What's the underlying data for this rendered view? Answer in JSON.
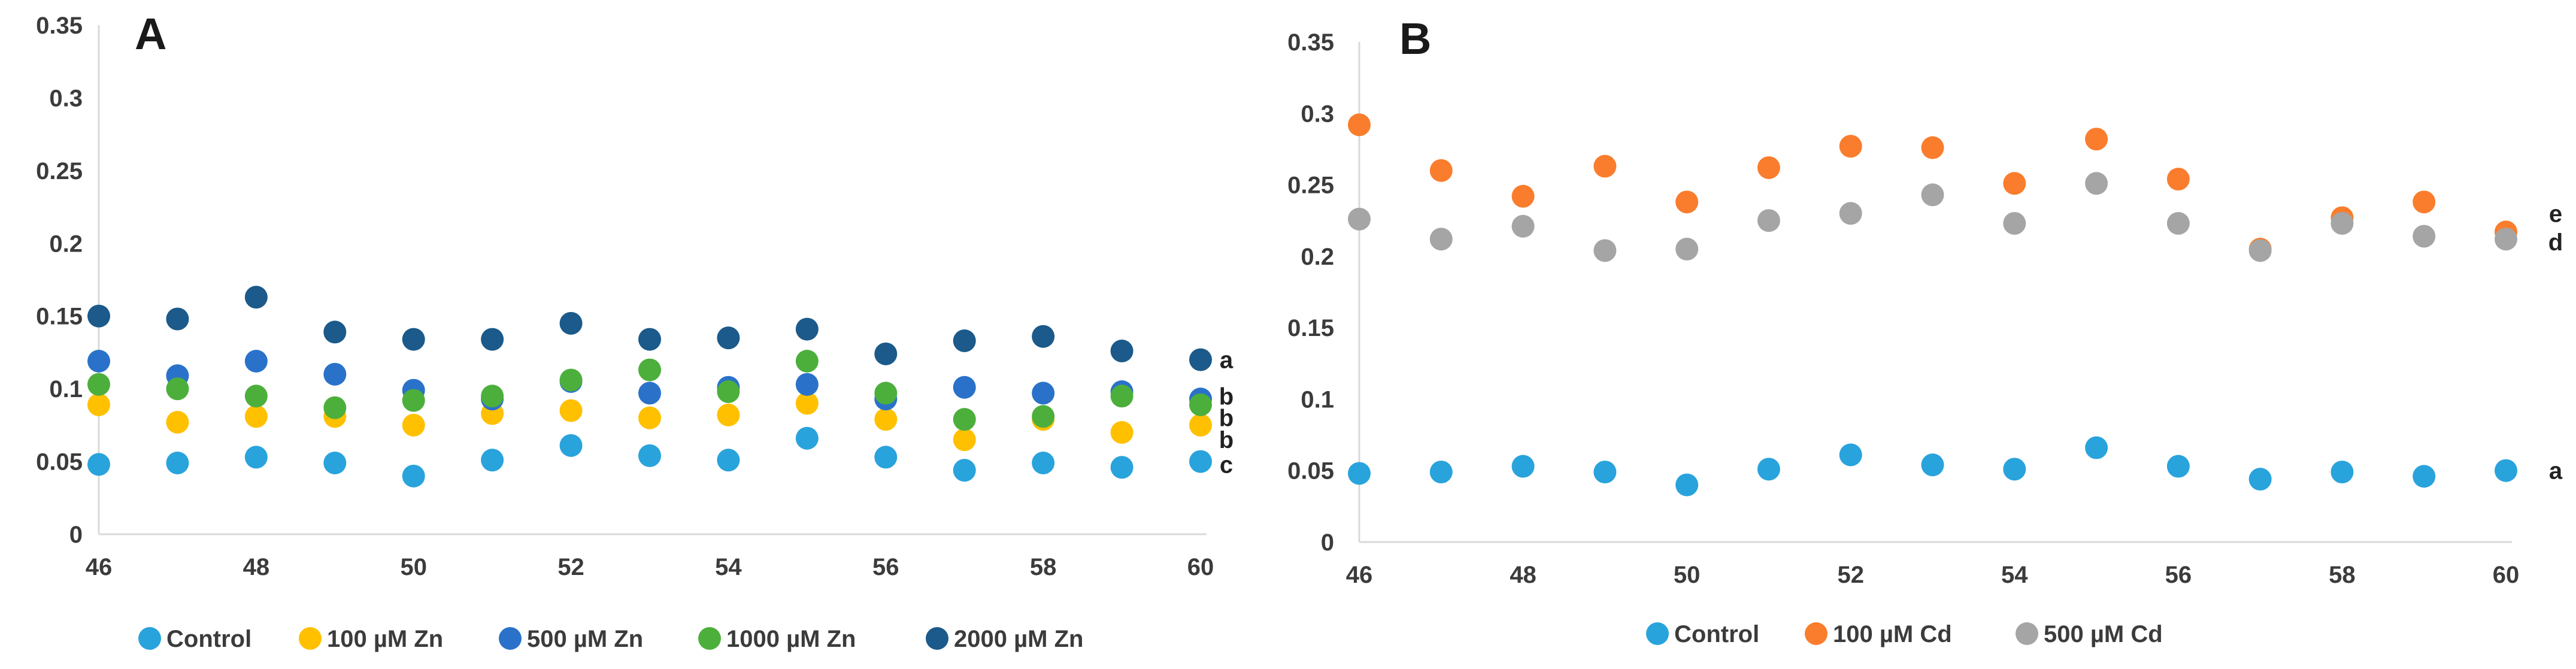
{
  "chart_data": [
    {
      "type": "scatter",
      "panel_label": "A",
      "x": [
        46,
        47,
        48,
        49,
        50,
        51,
        52,
        53,
        54,
        55,
        56,
        57,
        58,
        59,
        60
      ],
      "xticks": [
        "46",
        "48",
        "50",
        "52",
        "54",
        "56",
        "58",
        "60"
      ],
      "xlim": [
        46,
        60
      ],
      "yticks": [
        "0",
        "0.05",
        "0.1",
        "0.15",
        "0.2",
        "0.25",
        "0.3",
        "0.35"
      ],
      "ylim": [
        0,
        0.35
      ],
      "legend_position": "bottom",
      "series": [
        {
          "name": "Control",
          "color": "#29a3dc",
          "values": [
            0.048,
            0.049,
            0.053,
            0.049,
            0.04,
            0.051,
            0.061,
            0.054,
            0.051,
            0.066,
            0.053,
            0.044,
            0.049,
            0.046,
            0.05
          ]
        },
        {
          "name": "100 µM Zn",
          "color": "#ffc000",
          "values": [
            0.089,
            0.077,
            0.081,
            0.081,
            0.075,
            0.083,
            0.085,
            0.08,
            0.082,
            0.09,
            0.079,
            0.065,
            0.079,
            0.07,
            0.075
          ]
        },
        {
          "name": "500 µM Zn",
          "color": "#2a72c9",
          "values": [
            0.119,
            0.109,
            0.119,
            0.11,
            0.099,
            0.093,
            0.105,
            0.097,
            0.101,
            0.103,
            0.093,
            0.101,
            0.097,
            0.098,
            0.093
          ]
        },
        {
          "name": "1000 µM Zn",
          "color": "#4caf3c",
          "values": [
            0.103,
            0.1,
            0.095,
            0.087,
            0.092,
            0.095,
            0.106,
            0.113,
            0.098,
            0.119,
            0.097,
            0.079,
            0.081,
            0.095,
            0.089
          ]
        },
        {
          "name": "2000 µM Zn",
          "color": "#1b5a8a",
          "values": [
            0.15,
            0.148,
            0.163,
            0.139,
            0.134,
            0.134,
            0.145,
            0.134,
            0.135,
            0.141,
            0.124,
            0.133,
            0.136,
            0.126,
            0.12
          ]
        }
      ],
      "significance_labels": [
        {
          "text": "a",
          "value": 0.12
        },
        {
          "text": "b",
          "value": 0.095
        },
        {
          "text": "b",
          "value": 0.08
        },
        {
          "text": "b",
          "value": 0.065
        },
        {
          "text": "c",
          "value": 0.048
        }
      ]
    },
    {
      "type": "scatter",
      "panel_label": "B",
      "x": [
        46,
        47,
        48,
        49,
        50,
        51,
        52,
        53,
        54,
        55,
        56,
        57,
        58,
        59,
        60
      ],
      "xticks": [
        "46",
        "48",
        "50",
        "52",
        "54",
        "56",
        "58",
        "60"
      ],
      "xlim": [
        46,
        60
      ],
      "yticks": [
        "0",
        "0.05",
        "0.1",
        "0.15",
        "0.2",
        "0.25",
        "0.3",
        "0.35"
      ],
      "ylim": [
        0,
        0.35
      ],
      "legend_position": "bottom",
      "series": [
        {
          "name": "Control",
          "color": "#29a3dc",
          "values": [
            0.048,
            0.049,
            0.053,
            0.049,
            0.04,
            0.051,
            0.061,
            0.054,
            0.051,
            0.066,
            0.053,
            0.044,
            0.049,
            0.046,
            0.05
          ]
        },
        {
          "name": "100 µM Cd",
          "color": "#f97d2d",
          "values": [
            0.292,
            0.26,
            0.242,
            0.263,
            0.238,
            0.262,
            0.277,
            0.276,
            0.251,
            0.282,
            0.254,
            0.205,
            0.227,
            0.238,
            0.217
          ]
        },
        {
          "name": "500 µM Cd",
          "color": "#a5a5a5",
          "values": [
            0.226,
            0.212,
            0.221,
            0.204,
            0.205,
            0.225,
            0.23,
            0.243,
            0.223,
            0.251,
            0.223,
            0.204,
            0.223,
            0.214,
            0.212
          ]
        }
      ],
      "significance_labels": [
        {
          "text": "e",
          "value": 0.23
        },
        {
          "text": "d",
          "value": 0.21
        },
        {
          "text": "a",
          "value": 0.05
        }
      ]
    }
  ]
}
